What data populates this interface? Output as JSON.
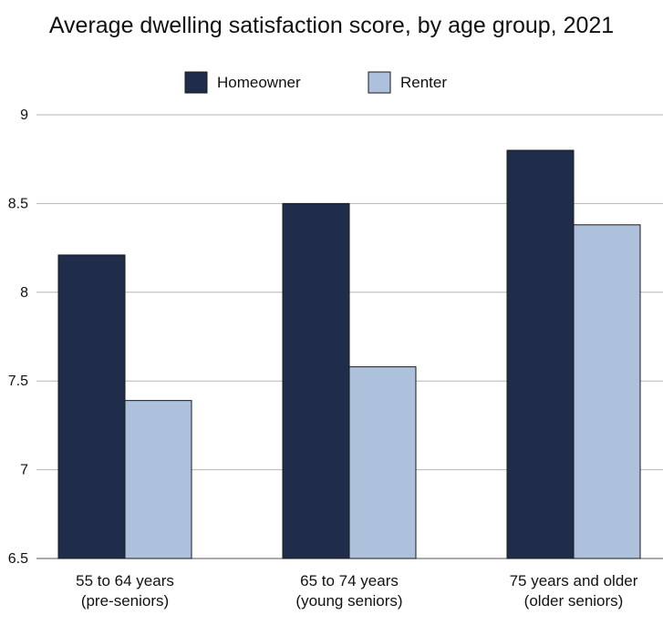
{
  "chart_data": {
    "type": "bar",
    "title": "Average dwelling satisfaction score, by age group, 2021",
    "categories": [
      [
        "55 to 64 years",
        "(pre-seniors)"
      ],
      [
        "65 to 74 years",
        "(young seniors)"
      ],
      [
        "75 years and older",
        "(older seniors)"
      ]
    ],
    "series": [
      {
        "name": "Homeowner",
        "color": "#1f2d4a",
        "values": [
          8.21,
          8.5,
          8.8
        ]
      },
      {
        "name": "Renter",
        "color": "#adc0dc",
        "values": [
          7.39,
          7.58,
          8.38
        ]
      }
    ],
    "xlabel": "",
    "ylabel": "",
    "ylim": [
      6.5,
      9
    ],
    "yticks": [
      "9",
      "8.5",
      "8",
      "7.5",
      "7",
      "6.5"
    ],
    "grid": true,
    "legend": "top-center"
  }
}
